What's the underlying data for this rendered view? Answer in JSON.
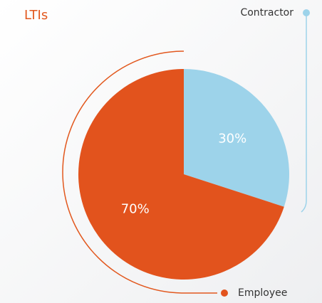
{
  "chart_data": {
    "type": "pie",
    "title": "LTIs",
    "categories": [
      "Contractor",
      "Employee"
    ],
    "values": [
      30,
      70
    ],
    "value_labels": [
      "30%",
      "70%"
    ],
    "colors": [
      "#9dd3ea",
      "#e2531d"
    ]
  }
}
